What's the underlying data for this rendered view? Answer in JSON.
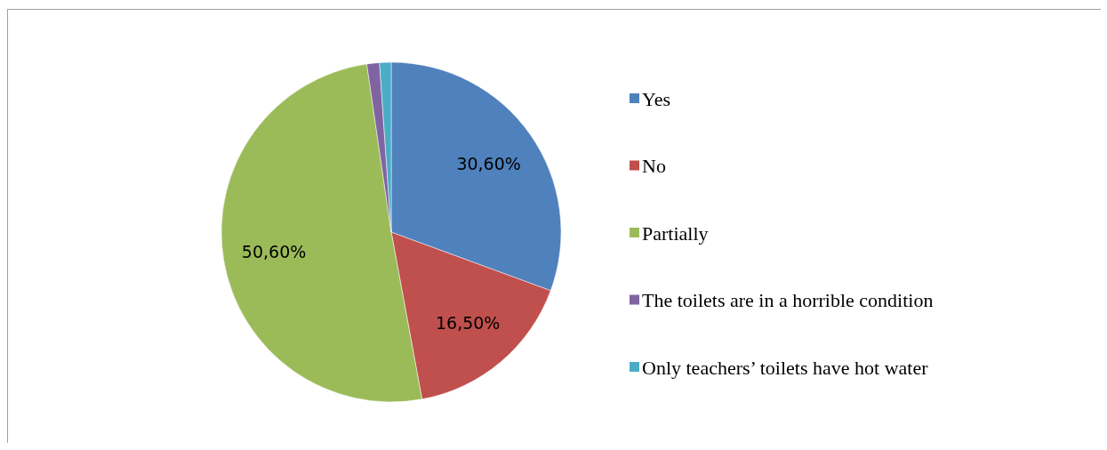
{
  "chart_data": {
    "type": "pie",
    "categories": [
      "Yes",
      "No",
      "Partially",
      "The toilets are in a horrible condition",
      "Only teachers’ toilets have hot water"
    ],
    "values": [
      30.6,
      16.5,
      50.6,
      1.2,
      1.1
    ],
    "colors": [
      "#4f81bd",
      "#c0504d",
      "#9bbb59",
      "#8064a2",
      "#4bacc6"
    ],
    "value_labels": [
      "30,60%",
      "16,50%",
      "50,60%",
      null,
      null
    ],
    "legend": "right"
  }
}
